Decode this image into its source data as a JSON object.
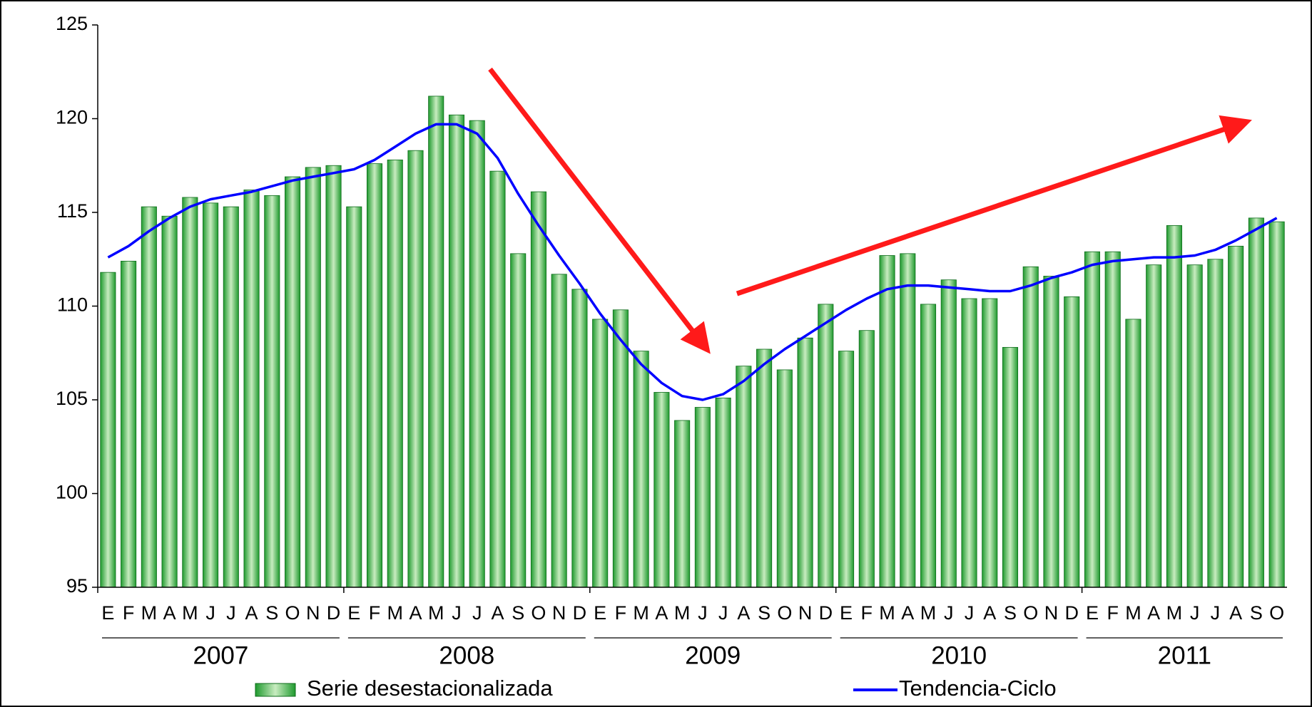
{
  "chart_data": {
    "type": "bar",
    "categories": [
      "E",
      "F",
      "M",
      "A",
      "M",
      "J",
      "J",
      "A",
      "S",
      "O",
      "N",
      "D",
      "E",
      "F",
      "M",
      "A",
      "M",
      "J",
      "J",
      "A",
      "S",
      "O",
      "N",
      "D",
      "E",
      "F",
      "M",
      "A",
      "M",
      "J",
      "J",
      "A",
      "S",
      "O",
      "N",
      "D",
      "E",
      "F",
      "M",
      "A",
      "M",
      "J",
      "J",
      "A",
      "S",
      "O",
      "N",
      "D",
      "E",
      "F",
      "M",
      "A",
      "M",
      "J",
      "J",
      "A",
      "S",
      "O"
    ],
    "years": [
      "2007",
      "2008",
      "2009",
      "2010",
      "2011"
    ],
    "series": [
      {
        "name": "Serie desestacionalizada",
        "type": "bar",
        "color": "#1f9a2e",
        "values": [
          111.8,
          112.4,
          115.3,
          114.8,
          115.8,
          115.5,
          115.3,
          116.2,
          115.9,
          116.9,
          117.4,
          117.5,
          115.3,
          117.6,
          117.8,
          118.3,
          121.2,
          120.2,
          119.9,
          117.2,
          112.8,
          116.1,
          111.7,
          110.9,
          109.3,
          109.8,
          107.6,
          105.4,
          103.9,
          104.6,
          105.1,
          106.8,
          107.7,
          106.6,
          108.3,
          110.1,
          107.6,
          108.7,
          112.7,
          112.8,
          110.1,
          111.4,
          110.4,
          110.4,
          107.8,
          112.1,
          111.6,
          110.5,
          112.9,
          112.9,
          109.3,
          112.2,
          114.3,
          112.2,
          112.5,
          113.2,
          114.7,
          114.5
        ]
      },
      {
        "name": "Tendencia-Ciclo",
        "type": "line",
        "color": "#0000ff",
        "values": [
          112.6,
          113.2,
          114.0,
          114.7,
          115.3,
          115.7,
          115.9,
          116.1,
          116.4,
          116.7,
          116.9,
          117.1,
          117.3,
          117.8,
          118.5,
          119.2,
          119.7,
          119.7,
          119.2,
          117.9,
          116.0,
          114.3,
          112.7,
          111.2,
          109.6,
          108.2,
          106.9,
          105.9,
          105.2,
          105.0,
          105.3,
          106.0,
          106.9,
          107.7,
          108.4,
          109.1,
          109.8,
          110.4,
          110.9,
          111.1,
          111.1,
          111.0,
          110.9,
          110.8,
          110.8,
          111.1,
          111.5,
          111.8,
          112.2,
          112.4,
          112.5,
          112.6,
          112.6,
          112.7,
          113.0,
          113.5,
          114.1,
          114.7
        ]
      }
    ],
    "ylim": [
      95,
      125
    ],
    "yticks": [
      95,
      100,
      105,
      110,
      115,
      120,
      125
    ],
    "grid": false
  }
}
